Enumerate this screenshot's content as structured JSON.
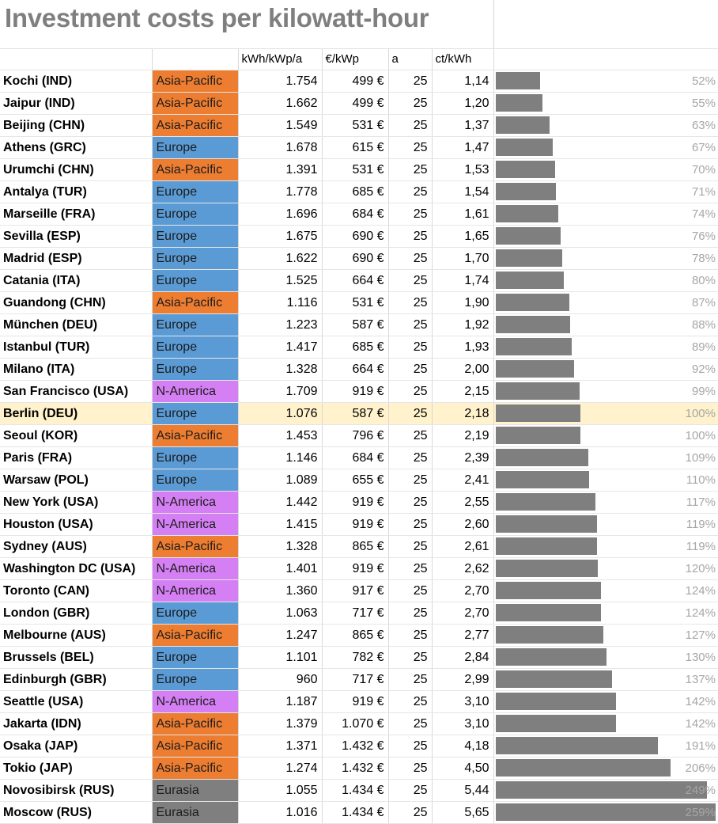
{
  "title": "Investment costs per kilowatt-hour",
  "colors": {
    "Asia-Pacific": "#ed7d31",
    "Europe": "#5b9bd5",
    "N-America": "#d57ff4",
    "Eurasia": "#7f7f7f",
    "bar": "#7f7f7f",
    "highlight_row": "#fff2cc"
  },
  "headers": [
    "",
    "",
    "kWh/kWp/a",
    "€/kWp",
    "a",
    "ct/kWh",
    ""
  ],
  "highlight_city": "Berlin (DEU)",
  "rows": [
    {
      "city": "Kochi (IND)",
      "region": "Asia-Pacific",
      "kwh": "1.754",
      "eur": "499 €",
      "a": "25",
      "ct": "1,14",
      "pct": "52%",
      "ratio": 0.52
    },
    {
      "city": "Jaipur (IND)",
      "region": "Asia-Pacific",
      "kwh": "1.662",
      "eur": "499 €",
      "a": "25",
      "ct": "1,20",
      "pct": "55%",
      "ratio": 0.55
    },
    {
      "city": "Beijing (CHN)",
      "region": "Asia-Pacific",
      "kwh": "1.549",
      "eur": "531 €",
      "a": "25",
      "ct": "1,37",
      "pct": "63%",
      "ratio": 0.63
    },
    {
      "city": "Athens (GRC)",
      "region": "Europe",
      "kwh": "1.678",
      "eur": "615 €",
      "a": "25",
      "ct": "1,47",
      "pct": "67%",
      "ratio": 0.67
    },
    {
      "city": "Urumchi (CHN)",
      "region": "Asia-Pacific",
      "kwh": "1.391",
      "eur": "531 €",
      "a": "25",
      "ct": "1,53",
      "pct": "70%",
      "ratio": 0.7
    },
    {
      "city": "Antalya (TUR)",
      "region": "Europe",
      "kwh": "1.778",
      "eur": "685 €",
      "a": "25",
      "ct": "1,54",
      "pct": "71%",
      "ratio": 0.71
    },
    {
      "city": "Marseille (FRA)",
      "region": "Europe",
      "kwh": "1.696",
      "eur": "684 €",
      "a": "25",
      "ct": "1,61",
      "pct": "74%",
      "ratio": 0.74
    },
    {
      "city": "Sevilla (ESP)",
      "region": "Europe",
      "kwh": "1.675",
      "eur": "690 €",
      "a": "25",
      "ct": "1,65",
      "pct": "76%",
      "ratio": 0.76
    },
    {
      "city": "Madrid (ESP)",
      "region": "Europe",
      "kwh": "1.622",
      "eur": "690 €",
      "a": "25",
      "ct": "1,70",
      "pct": "78%",
      "ratio": 0.78
    },
    {
      "city": "Catania (ITA)",
      "region": "Europe",
      "kwh": "1.525",
      "eur": "664 €",
      "a": "25",
      "ct": "1,74",
      "pct": "80%",
      "ratio": 0.8
    },
    {
      "city": "Guandong (CHN)",
      "region": "Asia-Pacific",
      "kwh": "1.116",
      "eur": "531 €",
      "a": "25",
      "ct": "1,90",
      "pct": "87%",
      "ratio": 0.87
    },
    {
      "city": "München (DEU)",
      "region": "Europe",
      "kwh": "1.223",
      "eur": "587 €",
      "a": "25",
      "ct": "1,92",
      "pct": "88%",
      "ratio": 0.88
    },
    {
      "city": "Istanbul (TUR)",
      "region": "Europe",
      "kwh": "1.417",
      "eur": "685 €",
      "a": "25",
      "ct": "1,93",
      "pct": "89%",
      "ratio": 0.89
    },
    {
      "city": "Milano (ITA)",
      "region": "Europe",
      "kwh": "1.328",
      "eur": "664 €",
      "a": "25",
      "ct": "2,00",
      "pct": "92%",
      "ratio": 0.92
    },
    {
      "city": "San Francisco (USA)",
      "region": "N-America",
      "kwh": "1.709",
      "eur": "919 €",
      "a": "25",
      "ct": "2,15",
      "pct": "99%",
      "ratio": 0.99
    },
    {
      "city": "Berlin (DEU)",
      "region": "Europe",
      "kwh": "1.076",
      "eur": "587 €",
      "a": "25",
      "ct": "2,18",
      "pct": "100%",
      "ratio": 1.0
    },
    {
      "city": "Seoul (KOR)",
      "region": "Asia-Pacific",
      "kwh": "1.453",
      "eur": "796 €",
      "a": "25",
      "ct": "2,19",
      "pct": "100%",
      "ratio": 1.0
    },
    {
      "city": "Paris (FRA)",
      "region": "Europe",
      "kwh": "1.146",
      "eur": "684 €",
      "a": "25",
      "ct": "2,39",
      "pct": "109%",
      "ratio": 1.09
    },
    {
      "city": "Warsaw (POL)",
      "region": "Europe",
      "kwh": "1.089",
      "eur": "655 €",
      "a": "25",
      "ct": "2,41",
      "pct": "110%",
      "ratio": 1.1
    },
    {
      "city": "New York (USA)",
      "region": "N-America",
      "kwh": "1.442",
      "eur": "919 €",
      "a": "25",
      "ct": "2,55",
      "pct": "117%",
      "ratio": 1.17
    },
    {
      "city": "Houston (USA)",
      "region": "N-America",
      "kwh": "1.415",
      "eur": "919 €",
      "a": "25",
      "ct": "2,60",
      "pct": "119%",
      "ratio": 1.19
    },
    {
      "city": "Sydney (AUS)",
      "region": "Asia-Pacific",
      "kwh": "1.328",
      "eur": "865 €",
      "a": "25",
      "ct": "2,61",
      "pct": "119%",
      "ratio": 1.19
    },
    {
      "city": "Washington DC (USA)",
      "region": "N-America",
      "kwh": "1.401",
      "eur": "919 €",
      "a": "25",
      "ct": "2,62",
      "pct": "120%",
      "ratio": 1.2
    },
    {
      "city": "Toronto (CAN)",
      "region": "N-America",
      "kwh": "1.360",
      "eur": "917 €",
      "a": "25",
      "ct": "2,70",
      "pct": "124%",
      "ratio": 1.24
    },
    {
      "city": "London (GBR)",
      "region": "Europe",
      "kwh": "1.063",
      "eur": "717 €",
      "a": "25",
      "ct": "2,70",
      "pct": "124%",
      "ratio": 1.24
    },
    {
      "city": "Melbourne (AUS)",
      "region": "Asia-Pacific",
      "kwh": "1.247",
      "eur": "865 €",
      "a": "25",
      "ct": "2,77",
      "pct": "127%",
      "ratio": 1.27
    },
    {
      "city": "Brussels (BEL)",
      "region": "Europe",
      "kwh": "1.101",
      "eur": "782 €",
      "a": "25",
      "ct": "2,84",
      "pct": "130%",
      "ratio": 1.3
    },
    {
      "city": "Edinburgh (GBR)",
      "region": "Europe",
      "kwh": "960",
      "eur": "717 €",
      "a": "25",
      "ct": "2,99",
      "pct": "137%",
      "ratio": 1.37
    },
    {
      "city": "Seattle (USA)",
      "region": "N-America",
      "kwh": "1.187",
      "eur": "919 €",
      "a": "25",
      "ct": "3,10",
      "pct": "142%",
      "ratio": 1.42
    },
    {
      "city": "Jakarta (IDN)",
      "region": "Asia-Pacific",
      "kwh": "1.379",
      "eur": "1.070 €",
      "a": "25",
      "ct": "3,10",
      "pct": "142%",
      "ratio": 1.42
    },
    {
      "city": "Osaka (JAP)",
      "region": "Asia-Pacific",
      "kwh": "1.371",
      "eur": "1.432 €",
      "a": "25",
      "ct": "4,18",
      "pct": "191%",
      "ratio": 1.91
    },
    {
      "city": "Tokio (JAP)",
      "region": "Asia-Pacific",
      "kwh": "1.274",
      "eur": "1.432 €",
      "a": "25",
      "ct": "4,50",
      "pct": "206%",
      "ratio": 2.06
    },
    {
      "city": "Novosibirsk (RUS)",
      "region": "Eurasia",
      "kwh": "1.055",
      "eur": "1.434 €",
      "a": "25",
      "ct": "5,44",
      "pct": "249%",
      "ratio": 2.49
    },
    {
      "city": "Moscow (RUS)",
      "region": "Eurasia",
      "kwh": "1.016",
      "eur": "1.434 €",
      "a": "25",
      "ct": "5,65",
      "pct": "259%",
      "ratio": 2.59
    }
  ]
}
